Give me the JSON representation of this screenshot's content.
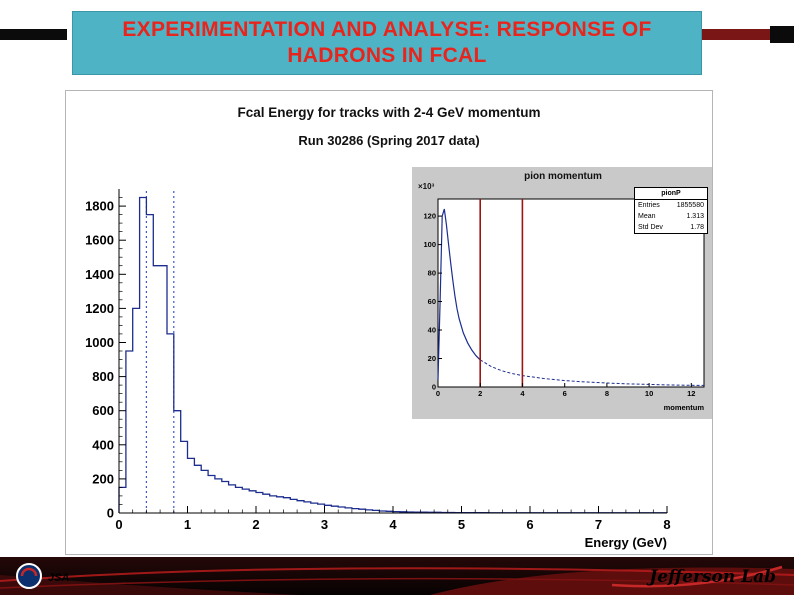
{
  "slide": {
    "title_line1": "EXPERIMENTATION AND ANALYSE: RESPONSE OF",
    "title_line2": "HADRONS IN FCAL"
  },
  "colors": {
    "header_bg": "#4fb3c6",
    "title_red": "#e8251d",
    "hist": "#1c2d8f",
    "cut_blue": "#4156cc",
    "cut_red": "#9b1515",
    "footer_red": "#b71c1c"
  },
  "chart_data": [
    {
      "type": "bar",
      "title": "Fcal Energy for tracks with 2-4 GeV momentum",
      "subtitle": "Run 30286 (Spring 2017 data)",
      "xlabel": "Energy (GeV)",
      "ylabel": "",
      "xlim": [
        0,
        8
      ],
      "ylim": [
        0,
        1900
      ],
      "x_ticks": [
        0,
        1,
        2,
        3,
        4,
        5,
        6,
        7,
        8
      ],
      "y_ticks": [
        200,
        400,
        600,
        800,
        1000,
        1200,
        1400,
        1600,
        1800
      ],
      "bin_width": 0.1,
      "counts": [
        150,
        950,
        1200,
        1850,
        1750,
        1450,
        1450,
        1050,
        600,
        420,
        320,
        280,
        250,
        220,
        200,
        185,
        165,
        150,
        140,
        130,
        120,
        110,
        100,
        95,
        90,
        80,
        72,
        65,
        58,
        52,
        45,
        40,
        35,
        30,
        26,
        22,
        18,
        15,
        12,
        10,
        8,
        7,
        6,
        5,
        5,
        4,
        4,
        3,
        3,
        2,
        2,
        2,
        2,
        2,
        1,
        1,
        1,
        1,
        1,
        1,
        1,
        1,
        1,
        1,
        1,
        1,
        1,
        1,
        1,
        1,
        1,
        1,
        1,
        1,
        1,
        1,
        1,
        1,
        1,
        1
      ],
      "cut_lines_x": [
        0.4,
        0.8
      ],
      "cut_line_style": "blue-dotted",
      "grid": false,
      "legend": "none"
    },
    {
      "type": "line",
      "title": "pion momentum",
      "xlabel": "momentum",
      "y_scale_label": "×10³",
      "xlim": [
        0,
        12.6
      ],
      "ylim": [
        0,
        132
      ],
      "x_ticks": [
        0,
        2,
        4,
        6,
        8,
        10,
        12
      ],
      "y_ticks": [
        20,
        40,
        60,
        80,
        100,
        120
      ],
      "x": [
        0,
        0.1,
        0.2,
        0.3,
        0.4,
        0.5,
        0.6,
        0.7,
        0.8,
        0.9,
        1.0,
        1.2,
        1.4,
        1.6,
        1.8,
        2.0,
        2.5,
        3.0,
        3.5,
        4.0,
        4.5,
        5.0,
        6.0,
        7.0,
        8.0,
        9.0,
        10.0,
        11.0,
        12.0,
        12.6
      ],
      "y": [
        5,
        60,
        120,
        125,
        114,
        100,
        87,
        75,
        64,
        55,
        48,
        38,
        31,
        26,
        22,
        19,
        14.5,
        11.5,
        9.5,
        8,
        7,
        6,
        4.5,
        3.5,
        2.8,
        2.2,
        1.8,
        1.4,
        1.2,
        1.1
      ],
      "cut_lines_x": [
        2,
        4
      ],
      "cut_line_style": "dark-red-solid",
      "stats": {
        "name": "pionP",
        "entries": "1855580",
        "mean": "1.313",
        "std_dev": "1.78"
      },
      "stats_labels": {
        "entries": "Entries",
        "mean": "Mean",
        "std_dev": "Std Dev"
      },
      "grid": false,
      "legend": "none"
    }
  ],
  "footer": {
    "jsa_text": "JSA",
    "jlab_text": "Jefferson Lab"
  }
}
